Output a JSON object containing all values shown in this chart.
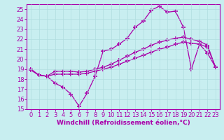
{
  "xlabel": "Windchill (Refroidissement éolien,°C)",
  "background_color": "#c8eef0",
  "line_color": "#aa00aa",
  "xlim": [
    -0.5,
    23.5
  ],
  "ylim": [
    15,
    25.5
  ],
  "xticks": [
    0,
    1,
    2,
    3,
    4,
    5,
    6,
    7,
    8,
    9,
    10,
    11,
    12,
    13,
    14,
    15,
    16,
    17,
    18,
    19,
    20,
    21,
    22,
    23
  ],
  "yticks": [
    15,
    16,
    17,
    18,
    19,
    20,
    21,
    22,
    23,
    24,
    25
  ],
  "series1_x": [
    0,
    1,
    2,
    3,
    4,
    5,
    6,
    7,
    8,
    9,
    10,
    11,
    12,
    13,
    14,
    15,
    16,
    17,
    18,
    19,
    20,
    21,
    22,
    23
  ],
  "series1_y": [
    18.9,
    18.4,
    18.3,
    17.6,
    17.2,
    16.5,
    15.3,
    16.6,
    18.3,
    20.8,
    21.0,
    21.5,
    22.1,
    23.2,
    23.8,
    24.9,
    25.3,
    24.7,
    24.8,
    23.2,
    19.0,
    21.5,
    20.6,
    19.2
  ],
  "series2_x": [
    0,
    1,
    2,
    3,
    4,
    5,
    6,
    7,
    8,
    9,
    10,
    11,
    12,
    13,
    14,
    15,
    16,
    17,
    18,
    19,
    20,
    21,
    22,
    23
  ],
  "series2_y": [
    19.0,
    18.4,
    18.3,
    18.5,
    18.5,
    18.5,
    18.5,
    18.6,
    18.8,
    19.0,
    19.2,
    19.5,
    19.8,
    20.1,
    20.4,
    20.7,
    21.0,
    21.2,
    21.5,
    21.7,
    21.6,
    21.5,
    21.2,
    19.2
  ],
  "series3_x": [
    0,
    1,
    2,
    3,
    4,
    5,
    6,
    7,
    8,
    9,
    10,
    11,
    12,
    13,
    14,
    15,
    16,
    17,
    18,
    19,
    20,
    21,
    22,
    23
  ],
  "series3_y": [
    19.0,
    18.4,
    18.3,
    18.8,
    18.8,
    18.8,
    18.7,
    18.8,
    19.0,
    19.2,
    19.5,
    19.9,
    20.3,
    20.7,
    21.0,
    21.4,
    21.7,
    21.9,
    22.1,
    22.2,
    22.0,
    21.8,
    21.4,
    19.2
  ],
  "marker": "+",
  "markersize": 4,
  "markeredgewidth": 1.2,
  "linewidth": 0.9,
  "grid_color": "#b0dde0",
  "xlabel_fontsize": 6.5,
  "tick_fontsize": 6.0
}
